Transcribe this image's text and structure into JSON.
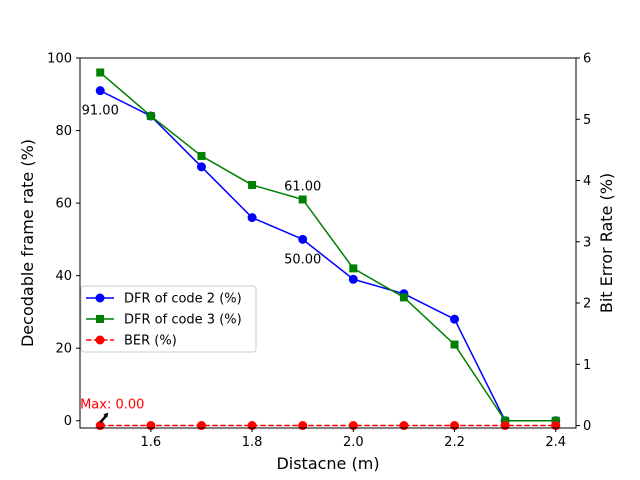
{
  "chart_data": {
    "type": "line",
    "title": "",
    "xlabel": "Distacne (m)",
    "ylabel_left": "Decodable frame rate (%)",
    "ylabel_right": "Bit Error Rate (%)",
    "x": [
      1.5,
      1.6,
      1.7,
      1.8,
      1.9,
      2.0,
      2.1,
      2.2,
      2.3,
      2.4
    ],
    "xlim": [
      1.46,
      2.44
    ],
    "ylim_left": [
      -2,
      100
    ],
    "ylim_right": [
      -0.04,
      6
    ],
    "x_ticks": [
      1.6,
      1.8,
      2.0,
      2.2,
      2.4
    ],
    "x_tick_labels": [
      "1.6",
      "1.8",
      "2.0",
      "2.2",
      "2.4"
    ],
    "y_left_ticks": [
      0,
      20,
      40,
      60,
      80,
      100
    ],
    "y_left_tick_labels": [
      "0",
      "20",
      "40",
      "60",
      "80",
      "100"
    ],
    "y_right_ticks": [
      0,
      1,
      2,
      3,
      4,
      5,
      6
    ],
    "y_right_tick_labels": [
      "0",
      "1",
      "2",
      "3",
      "4",
      "5",
      "6"
    ],
    "grid": false,
    "legend_position": "center-left",
    "series": [
      {
        "name": "DFR of code 2 (%)",
        "axis": "left",
        "color": "#0000ff",
        "marker": "circle",
        "line": "solid",
        "values": [
          91,
          84,
          70,
          56,
          50,
          39,
          35,
          28,
          0,
          0
        ]
      },
      {
        "name": "DFR of code 3 (%)",
        "axis": "left",
        "color": "#008000",
        "marker": "square",
        "line": "solid",
        "values": [
          96,
          84,
          73,
          65,
          61,
          42,
          34,
          21,
          0,
          0
        ]
      },
      {
        "name": "BER (%)",
        "axis": "right",
        "color": "#ff0000",
        "marker": "circle",
        "line": "dashed",
        "values": [
          0,
          0,
          0,
          0,
          0,
          0,
          0,
          0,
          0,
          0
        ]
      }
    ],
    "annotations": [
      {
        "text": "91.00",
        "series": 0,
        "x": 1.5,
        "y": 91,
        "anchor": "below"
      },
      {
        "text": "50.00",
        "series": 0,
        "x": 1.9,
        "y": 50,
        "anchor": "below"
      },
      {
        "text": "61.00",
        "series": 1,
        "x": 1.9,
        "y": 61,
        "anchor": "above"
      },
      {
        "text": "Max: 0.00",
        "series": 2,
        "x": 1.5,
        "y": 0,
        "anchor": "above-arrow",
        "color": "#ff0000"
      }
    ]
  }
}
